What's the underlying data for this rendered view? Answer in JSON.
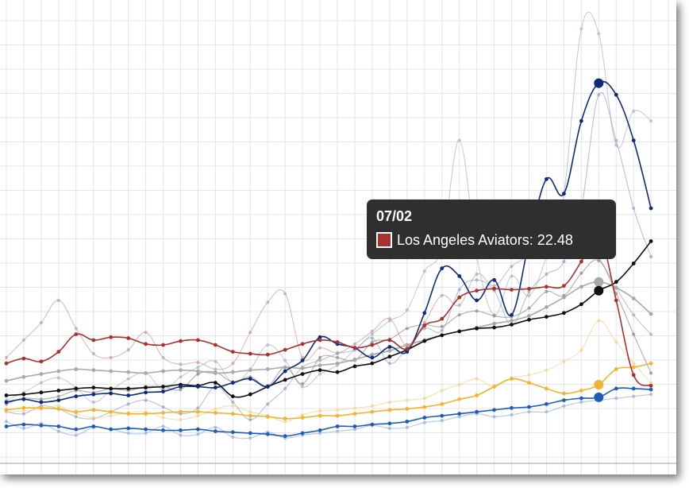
{
  "tooltip": {
    "date": "07/02",
    "series": "Los Angeles Aviators",
    "value": "22.48",
    "color": "#a8322d"
  },
  "chart_data": {
    "type": "line",
    "grid": true,
    "ylim": [
      0,
      40
    ],
    "x_count": 38,
    "highlight_index": 34,
    "series": [
      {
        "name": "Los Angeles Aviators",
        "color": "#a8322d",
        "emphasis": true,
        "values": [
          9.0,
          9.5,
          9.2,
          10.2,
          12.0,
          11.4,
          11.7,
          11.6,
          11.0,
          10.9,
          11.3,
          11.4,
          10.9,
          10.2,
          10.0,
          9.9,
          10.4,
          11.0,
          11.4,
          11.2,
          10.6,
          10.9,
          11.4,
          10.5,
          12.9,
          13.6,
          15.8,
          16.5,
          16.7,
          16.6,
          16.7,
          16.9,
          17.0,
          19.5,
          22.48,
          15.5,
          7.8,
          6.7
        ]
      },
      {
        "name": "",
        "color": "#102a7e",
        "emphasis": true,
        "values": [
          5.0,
          5.3,
          5.0,
          5.2,
          5.6,
          5.8,
          5.9,
          5.7,
          6.0,
          6.1,
          6.6,
          6.6,
          6.5,
          7.0,
          7.4,
          6.6,
          8.2,
          9.3,
          11.7,
          11.0,
          10.6,
          9.6,
          10.7,
          10.2,
          14.2,
          18.8,
          18.0,
          15.5,
          17.6,
          14.0,
          21.5,
          28.0,
          26.5,
          34.0,
          37.9,
          36.7,
          32.0,
          25.0
        ]
      },
      {
        "name": "",
        "color": "#111111",
        "emphasis": true,
        "values": [
          5.7,
          5.8,
          6.0,
          6.2,
          6.4,
          6.5,
          6.4,
          6.4,
          6.5,
          6.6,
          6.8,
          6.7,
          7.0,
          5.6,
          5.8,
          6.6,
          7.3,
          7.9,
          8.3,
          8.1,
          8.7,
          9.0,
          9.7,
          10.4,
          11.3,
          11.9,
          12.3,
          12.6,
          12.7,
          13.0,
          13.5,
          13.8,
          14.2,
          15.1,
          16.5,
          17.4,
          19.3,
          21.6
        ]
      },
      {
        "name": "",
        "color": "#a9a9a9",
        "emphasis": true,
        "values": [
          7.2,
          7.6,
          7.9,
          8.2,
          8.4,
          8.3,
          8.2,
          8.1,
          8.0,
          8.2,
          8.3,
          8.2,
          8.0,
          8.1,
          8.3,
          8.4,
          8.6,
          8.5,
          8.8,
          9.0,
          9.4,
          9.9,
          10.3,
          10.9,
          11.4,
          11.9,
          12.3,
          12.7,
          13.1,
          13.4,
          13.9,
          14.8,
          15.8,
          16.9,
          17.4,
          16.8,
          15.7,
          14.1
        ]
      },
      {
        "name": "",
        "color": "#f2b430",
        "emphasis": true,
        "values": [
          4.2,
          4.4,
          4.4,
          4.3,
          4.0,
          4.2,
          4.0,
          3.8,
          3.8,
          3.9,
          4.0,
          4.0,
          3.9,
          3.8,
          3.6,
          3.5,
          3.3,
          3.4,
          3.6,
          3.6,
          3.8,
          4.0,
          4.2,
          4.3,
          4.5,
          4.8,
          5.3,
          5.7,
          6.6,
          7.4,
          7.0,
          6.4,
          5.9,
          6.2,
          6.8,
          8.4,
          8.6,
          9.0
        ]
      },
      {
        "name": "",
        "color": "#1f5bb8",
        "emphasis": true,
        "values": [
          2.5,
          2.7,
          2.6,
          2.5,
          2.2,
          2.5,
          2.2,
          2.3,
          2.2,
          2.1,
          2.1,
          2.2,
          2.0,
          1.9,
          1.8,
          1.7,
          1.5,
          1.8,
          2.1,
          2.5,
          2.5,
          2.7,
          2.8,
          3.0,
          3.4,
          3.6,
          3.8,
          4.0,
          4.2,
          4.4,
          4.5,
          4.8,
          5.2,
          5.4,
          5.5,
          6.4,
          6.4,
          6.3
        ]
      },
      {
        "name": "",
        "color": "#c9a0a3",
        "emphasis": false,
        "values": [
          9.6,
          11.4,
          13.2,
          15.5,
          12.6,
          10.0,
          9.6,
          10.4,
          12.2,
          9.6,
          8.9,
          9.1,
          8.4,
          9.0,
          12.2,
          15.3,
          16.2,
          9.6,
          10.6,
          10.1,
          11.0,
          12.3,
          13.6,
          10.8,
          13.2,
          16.0,
          15.0,
          18.2,
          17.0,
          19.0,
          20.1,
          21.5,
          22.2,
          23.0,
          20.0,
          16.8,
          14.0,
          12.0
        ]
      },
      {
        "name": "",
        "color": "#b3b6c4",
        "emphasis": false,
        "values": [
          5.2,
          6.0,
          7.0,
          7.5,
          6.5,
          5.0,
          6.2,
          7.4,
          8.0,
          6.3,
          7.6,
          8.6,
          9.2,
          7.0,
          8.4,
          10.9,
          9.3,
          6.6,
          7.9,
          8.8,
          10.4,
          12.0,
          13.4,
          14.5,
          18.5,
          21.0,
          32.0,
          20.0,
          14.0,
          18.0,
          16.0,
          20.0,
          26.5,
          43.5,
          43.0,
          31.5,
          35.0,
          34.0
        ]
      },
      {
        "name": "",
        "color": "#9aa6c9",
        "emphasis": false,
        "values": [
          4.0,
          3.8,
          4.6,
          4.3,
          3.5,
          3.3,
          4.0,
          4.8,
          5.2,
          4.5,
          3.8,
          4.4,
          6.6,
          5.0,
          3.2,
          4.8,
          6.4,
          8.6,
          9.3,
          10.0,
          10.4,
          11.6,
          9.0,
          10.6,
          12.6,
          12.4,
          16.6,
          17.6,
          16.5,
          13.0,
          16.4,
          18.2,
          19.5,
          25.0,
          36.7,
          32.0,
          25.0,
          20.0
        ]
      },
      {
        "name": "",
        "color": "#8d8d8d",
        "emphasis": false,
        "values": [
          4.8,
          5.4,
          5.3,
          5.6,
          6.2,
          6.0,
          6.4,
          6.2,
          6.6,
          6.6,
          6.3,
          7.9,
          8.1,
          7.1,
          7.6,
          6.7,
          8.6,
          6.9,
          9.6,
          9.6,
          9.3,
          11.2,
          11.5,
          12.6,
          13.0,
          12.8,
          14.0,
          14.4,
          13.9,
          13.8,
          14.7,
          16.4,
          16.0,
          18.3,
          19.6,
          16.2,
          12.0,
          8.0
        ]
      },
      {
        "name": "",
        "color": "#f5d38a",
        "emphasis": false,
        "values": [
          4.0,
          4.1,
          4.3,
          4.6,
          3.8,
          3.4,
          3.6,
          3.9,
          4.0,
          3.4,
          3.2,
          3.6,
          4.3,
          4.6,
          4.0,
          3.6,
          3.0,
          3.7,
          4.1,
          4.2,
          4.4,
          4.6,
          5.0,
          5.2,
          5.4,
          6.2,
          6.8,
          7.4,
          6.6,
          7.5,
          7.8,
          8.3,
          9.2,
          10.4,
          13.4,
          11.2,
          9.0,
          7.0
        ]
      },
      {
        "name": "",
        "color": "#93b1dd",
        "emphasis": false,
        "values": [
          3.0,
          2.3,
          2.8,
          2.0,
          1.6,
          2.4,
          2.2,
          1.8,
          1.8,
          2.5,
          1.6,
          1.7,
          2.4,
          1.4,
          1.3,
          1.9,
          1.3,
          1.6,
          1.8,
          2.0,
          2.2,
          2.6,
          2.3,
          2.4,
          2.9,
          3.1,
          3.5,
          3.8,
          3.5,
          3.7,
          4.0,
          4.0,
          4.6,
          5.0,
          5.2,
          5.4,
          5.6,
          5.8
        ]
      }
    ]
  }
}
